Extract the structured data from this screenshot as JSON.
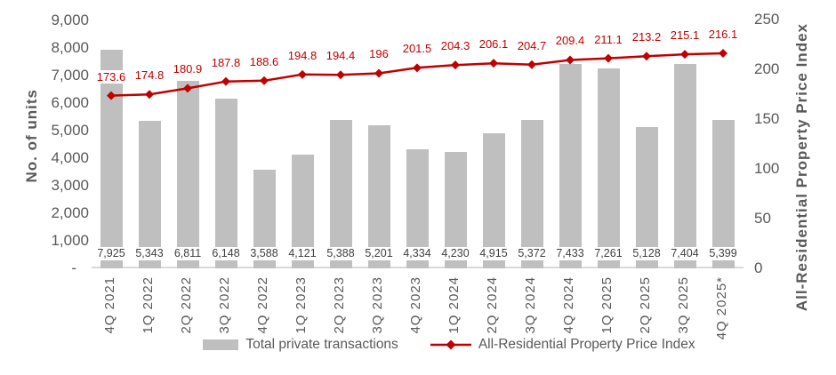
{
  "chart_data": {
    "type": "combo-bar-line",
    "categories": [
      "4Q 2021",
      "1Q 2022",
      "2Q 2022",
      "3Q 2022",
      "4Q 2022",
      "1Q 2023",
      "2Q 2023",
      "3Q 2023",
      "4Q 2023",
      "1Q 2024",
      "2Q 2024",
      "3Q 2024",
      "4Q 2024",
      "1Q 2025",
      "2Q 2025",
      "3Q 2025",
      "4Q 2025*"
    ],
    "series": [
      {
        "name": "Total private transactions",
        "type": "bar",
        "axis": "left",
        "color": "#bfbfbf",
        "values": [
          7925,
          5343,
          6811,
          6148,
          3588,
          4121,
          5388,
          5201,
          4334,
          4230,
          4915,
          5372,
          7433,
          7261,
          5128,
          7404,
          5399
        ],
        "labels": [
          "7,925",
          "5,343",
          "6,811",
          "6,148",
          "3,588",
          "4,121",
          "5,388",
          "5,201",
          "4,334",
          "4,230",
          "4,915",
          "5,372",
          "7,433",
          "7,261",
          "5,128",
          "7,404",
          "5,399"
        ]
      },
      {
        "name": "All-Residential Property Price Index",
        "type": "line",
        "axis": "right",
        "color": "#c00000",
        "marker": "diamond",
        "values": [
          173.6,
          174.8,
          180.9,
          187.8,
          188.6,
          194.8,
          194.4,
          196,
          201.5,
          204.3,
          206.1,
          204.7,
          209.4,
          211.1,
          213.2,
          215.1,
          216.1
        ],
        "labels": [
          "173.6",
          "174.8",
          "180.9",
          "187.8",
          "188.6",
          "194.8",
          "194.4",
          "196",
          "201.5",
          "204.3",
          "206.1",
          "204.7",
          "209.4",
          "211.1",
          "213.2",
          "215.1",
          "216.1"
        ]
      }
    ],
    "left_axis": {
      "title": "No. of units",
      "min": 0,
      "max": 9000,
      "ticks": [
        {
          "label": "9,000",
          "value": 9000
        },
        {
          "label": "8,000",
          "value": 8000
        },
        {
          "label": "7,000",
          "value": 7000
        },
        {
          "label": "6,000",
          "value": 6000
        },
        {
          "label": "5,000",
          "value": 5000
        },
        {
          "label": "4,000",
          "value": 4000
        },
        {
          "label": "3,000",
          "value": 3000
        },
        {
          "label": "2,000",
          "value": 2000
        },
        {
          "label": "1,000",
          "value": 1000
        },
        {
          "label": "-",
          "value": 0
        }
      ]
    },
    "right_axis": {
      "title": "All-Residential Property Price Index",
      "min": 0,
      "max": 250,
      "ticks": [
        {
          "label": "250",
          "value": 250
        },
        {
          "label": "200",
          "value": 200
        },
        {
          "label": "150",
          "value": 150
        },
        {
          "label": "100",
          "value": 100
        },
        {
          "label": "50",
          "value": 50
        },
        {
          "label": "0",
          "value": 0
        }
      ]
    },
    "legend": {
      "position": "bottom"
    },
    "grid": "off",
    "colors": {
      "bar": "#bfbfbf",
      "line": "#c00000",
      "axis_text": "#595959",
      "bar_label_text": "#404040",
      "axis_line": "#d9d9d9"
    }
  }
}
